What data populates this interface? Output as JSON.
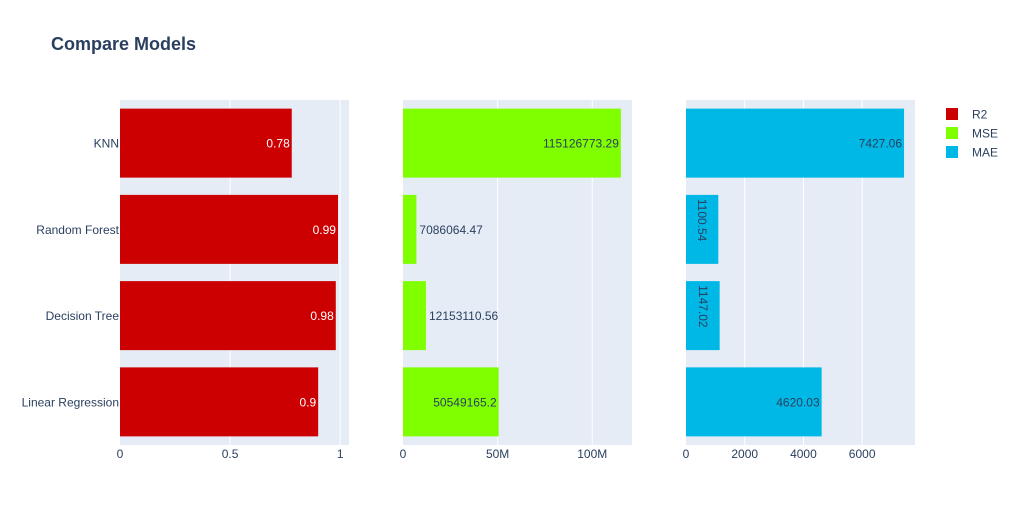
{
  "title": "Compare Models",
  "chart_data": [
    {
      "type": "bar",
      "orientation": "horizontal",
      "categories": [
        "KNN",
        "Random Forest",
        "Decision Tree",
        "Linear Regression"
      ],
      "series": [
        {
          "name": "R2",
          "values": [
            0.78,
            0.99,
            0.98,
            0.9
          ]
        }
      ],
      "value_labels": [
        "0.78",
        "0.99",
        "0.98",
        "0.9"
      ],
      "xlim": [
        0,
        1.04
      ],
      "xticks": [
        0,
        0.5,
        1
      ],
      "xtick_labels": [
        "0",
        "0.5",
        "1"
      ],
      "color": "#cc0000",
      "label_color": "#ffffff",
      "grid": true
    },
    {
      "type": "bar",
      "orientation": "horizontal",
      "categories": [
        "KNN",
        "Random Forest",
        "Decision Tree",
        "Linear Regression"
      ],
      "series": [
        {
          "name": "MSE",
          "values": [
            115126773.29,
            7086064.47,
            12153110.56,
            50549165.2
          ]
        }
      ],
      "value_labels": [
        "115126773.29",
        "7086064.47",
        "12153110.56",
        "50549165.2"
      ],
      "xlim": [
        0,
        121000000
      ],
      "xticks": [
        0,
        50000000,
        100000000
      ],
      "xtick_labels": [
        "0",
        "50M",
        "100M"
      ],
      "color": "#7fff00",
      "label_color": "#2a3f5f",
      "grid": true
    },
    {
      "type": "bar",
      "orientation": "horizontal",
      "categories": [
        "KNN",
        "Random Forest",
        "Decision Tree",
        "Linear Regression"
      ],
      "series": [
        {
          "name": "MAE",
          "values": [
            7427.06,
            1100.54,
            1147.02,
            4620.03
          ]
        }
      ],
      "value_labels": [
        "7427.06",
        "1100.54",
        "1147.02",
        "4620.03"
      ],
      "xlim": [
        0,
        7800
      ],
      "xticks": [
        0,
        2000,
        4000,
        6000
      ],
      "xtick_labels": [
        "0",
        "2000",
        "4000",
        "6000"
      ],
      "color": "#00b8e6",
      "label_color": "#2a3f5f",
      "grid": true
    }
  ],
  "legend": {
    "placement": "top-right",
    "items": [
      {
        "label": "R2",
        "color": "#cc0000"
      },
      {
        "label": "MSE",
        "color": "#7fff00"
      },
      {
        "label": "MAE",
        "color": "#00b8e6"
      }
    ]
  }
}
